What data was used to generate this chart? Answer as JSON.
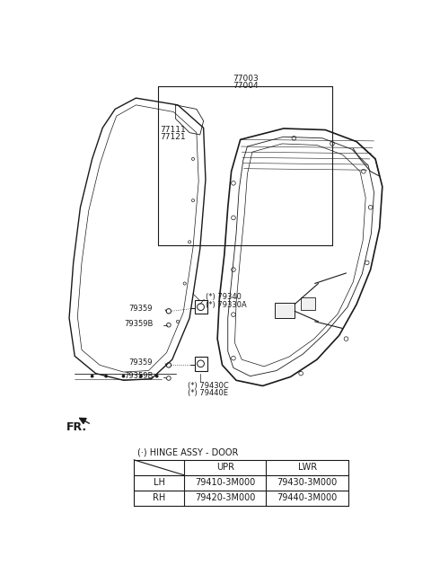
{
  "bg_color": "#ffffff",
  "label_77003": "77003",
  "label_77004": "77004",
  "label_77111": "77111",
  "label_77121": "77121",
  "label_79340": "(*) 79340",
  "label_79330A": "(*) 79330A",
  "label_79359_upper": "79359",
  "label_79359B_upper": "79359B",
  "label_79359_lower": "79359",
  "label_79359B_lower": "79359B",
  "label_79430C": "(*) 79430C",
  "label_79440E": "(*) 79440E",
  "label_FR": "FR.",
  "table_title": "(·) HINGE ASSY - DOOR",
  "table_headers": [
    "",
    "UPR",
    "LWR"
  ],
  "table_row1": [
    "LH",
    "79410-3M000",
    "79430-3M000"
  ],
  "table_row2": [
    "RH",
    "79420-3M000",
    "79440-3M000"
  ],
  "line_color": "#1a1a1a",
  "text_color": "#1a1a1a",
  "font_size_label": 6.5,
  "font_size_table": 7.0,
  "font_size_FR": 9
}
